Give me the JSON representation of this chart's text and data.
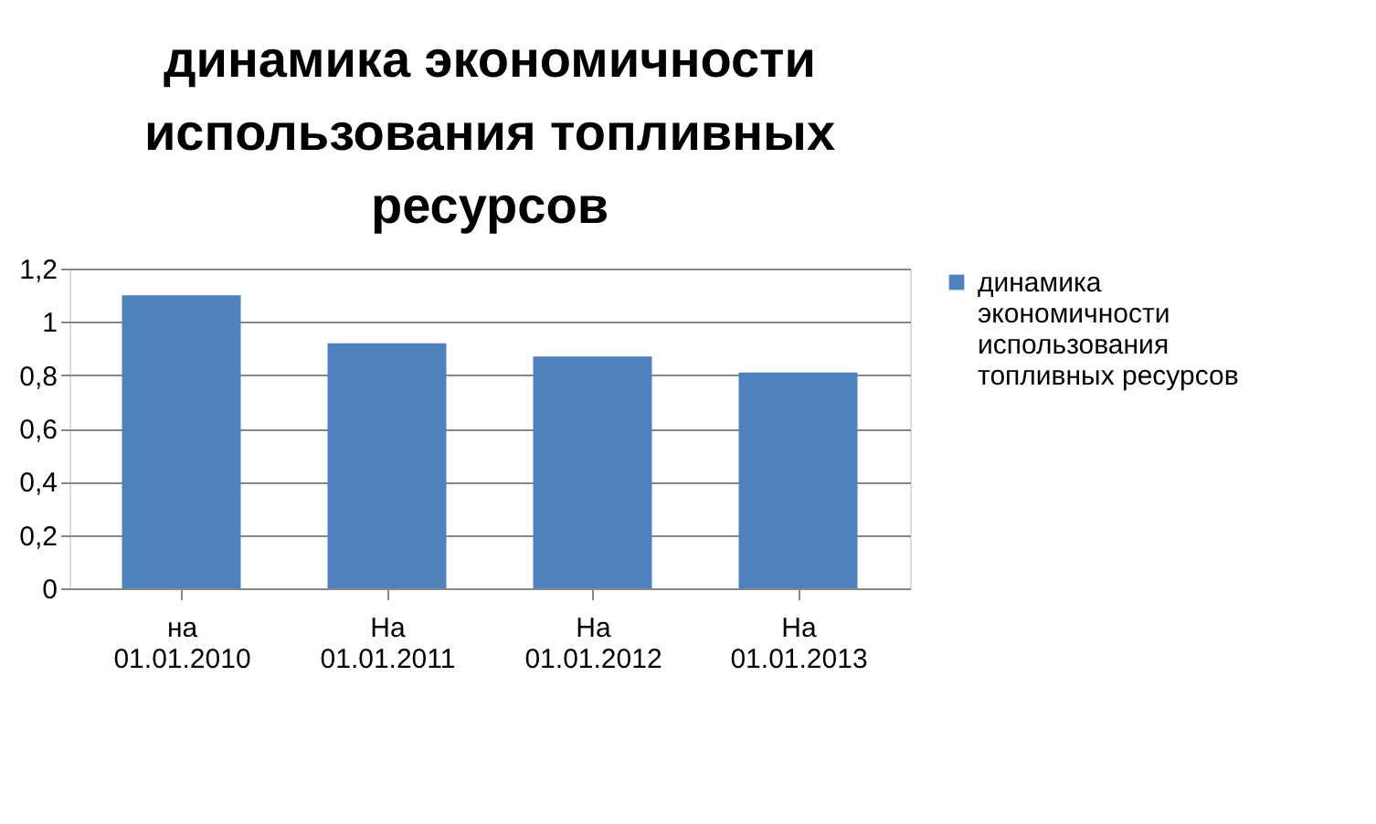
{
  "chart_data": {
    "type": "bar",
    "title": "динамика экономичности использования топливных ресурсов",
    "categories": [
      "на 01.01.2010",
      "На 01.01.2011",
      "На 01.01.2012",
      "На 01.01.2013"
    ],
    "series": [
      {
        "name": "динамика экономичности использования топливных ресурсов",
        "color": "#4f81bd",
        "values": [
          1.1,
          0.92,
          0.87,
          0.81
        ]
      }
    ],
    "ylim": [
      0,
      1.2
    ],
    "yticks": [
      0,
      {
        "value": 0.2,
        "label": "0,2"
      },
      {
        "value": 0.4,
        "label": "0,4"
      },
      {
        "value": 0.6,
        "label": "0,6"
      },
      {
        "value": 0.8,
        "label": "0,8"
      },
      1,
      {
        "value": 1.2,
        "label": "1,2"
      }
    ],
    "grid": "y",
    "legend": "right"
  }
}
